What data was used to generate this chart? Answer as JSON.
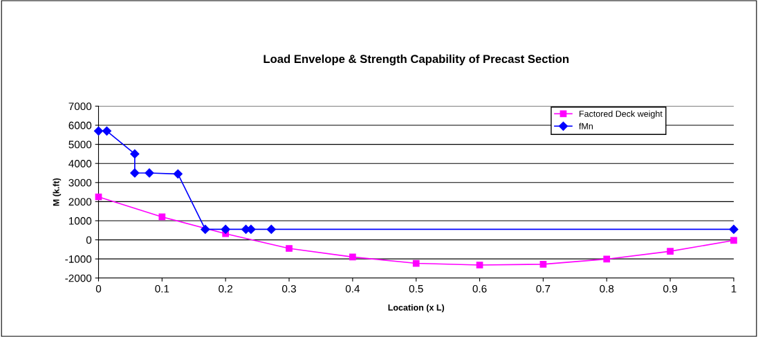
{
  "chart_data": {
    "type": "line",
    "title": "Load Envelope & Strength Capability of Precast Section",
    "xlabel": "Location (x L)",
    "ylabel": "M (k.ft)",
    "series": [
      {
        "name": "Factored Deck weight",
        "color": "#ff00ff",
        "marker": "square",
        "x": [
          0,
          0.1,
          0.2,
          0.3,
          0.4,
          0.5,
          0.6,
          0.7,
          0.8,
          0.9,
          1
        ],
        "values": [
          2250,
          1200,
          320,
          -450,
          -900,
          -1230,
          -1320,
          -1280,
          -1010,
          -600,
          -30
        ]
      },
      {
        "name": "fMn",
        "color": "#0000ff",
        "marker": "diamond",
        "x": [
          0,
          0.013,
          0.057,
          0.057,
          0.08,
          0.125,
          0.168,
          0.2,
          0.232,
          0.24,
          0.272,
          1
        ],
        "values": [
          5700,
          5700,
          4500,
          3500,
          3500,
          3450,
          550,
          550,
          550,
          550,
          550,
          550
        ]
      }
    ],
    "xlim": [
      0,
      1
    ],
    "xticks": [
      0,
      0.1,
      0.2,
      0.3,
      0.4,
      0.5,
      0.6,
      0.7,
      0.8,
      0.9,
      1
    ],
    "ylim": [
      -2000,
      7000
    ],
    "yticks": [
      -2000,
      -1000,
      0,
      1000,
      2000,
      3000,
      4000,
      5000,
      6000,
      7000
    ],
    "grid": "y",
    "legend": "top right",
    "line_style": "solid"
  }
}
